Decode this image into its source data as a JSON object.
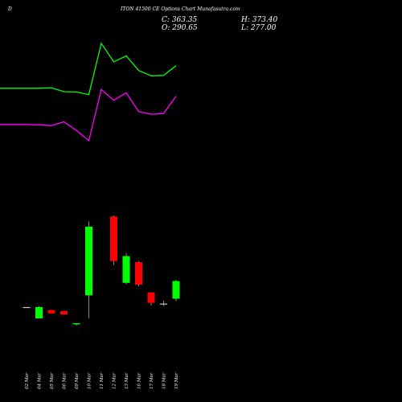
{
  "header": {
    "prefix": "D",
    "title": "ITON 41500 CE Options Chart Munafasutra.com"
  },
  "ohlc": {
    "close": "C: 363.35",
    "high": "H: 373.40",
    "open": "O: 290.65",
    "low": "L: 277.00"
  },
  "chart_data": {
    "type": "candlestick",
    "categories": [
      "02 Mar",
      "04 Mar",
      "05 Mar",
      "06 Mar",
      "09 Mar",
      "10 Mar",
      "11 Mar",
      "12 Mar",
      "13 Mar",
      "16 Mar",
      "17 Mar",
      "18 Mar",
      "19 Mar"
    ],
    "candles": [
      {
        "open": 50,
        "high": 50,
        "low": 50,
        "close": 50,
        "dir": "flat"
      },
      {
        "open": 20,
        "high": 52,
        "low": 20,
        "close": 50,
        "dir": "up"
      },
      {
        "open": 42,
        "high": 42,
        "low": 33,
        "close": 33,
        "dir": "down"
      },
      {
        "open": 39,
        "high": 39,
        "low": 30,
        "close": 30,
        "dir": "down"
      },
      {
        "open": 4,
        "high": 7,
        "low": 1,
        "close": 7,
        "dir": "up"
      },
      {
        "open": 81,
        "high": 277,
        "low": 20,
        "close": 263,
        "dir": "up"
      },
      {
        "open": 0,
        "high": 0,
        "low": 0,
        "close": 0,
        "dir": "none"
      },
      {
        "open": 290,
        "high": 293,
        "low": 161,
        "close": 172,
        "dir": "down"
      },
      {
        "open": 114,
        "high": 193,
        "low": 110,
        "close": 185,
        "dir": "up"
      },
      {
        "open": 169,
        "high": 172,
        "low": 105,
        "close": 109,
        "dir": "down"
      },
      {
        "open": 89,
        "high": 89,
        "low": 54,
        "close": 61,
        "dir": "down"
      },
      {
        "open": 57,
        "high": 67,
        "low": 52,
        "close": 59,
        "dir": "flat"
      },
      {
        "open": 72,
        "high": 122,
        "low": 66,
        "close": 119,
        "dir": "up"
      }
    ],
    "overlays": [
      {
        "color": "#00ff00",
        "values": [
          630,
          630,
          631,
          621,
          620,
          613,
          749,
          700,
          716,
          677,
          663,
          664,
          690
        ]
      },
      {
        "color": "#ff00ff",
        "values": [
          534,
          533,
          531,
          541,
          518,
          491,
          627,
          598,
          618,
          568,
          561,
          563,
          609
        ]
      }
    ],
    "ylim": [
      -10,
      800
    ],
    "colors": {
      "up": "#00ff00",
      "down": "#ff0000",
      "flat": "#cccccc",
      "wick": "#aaaaaa"
    }
  }
}
